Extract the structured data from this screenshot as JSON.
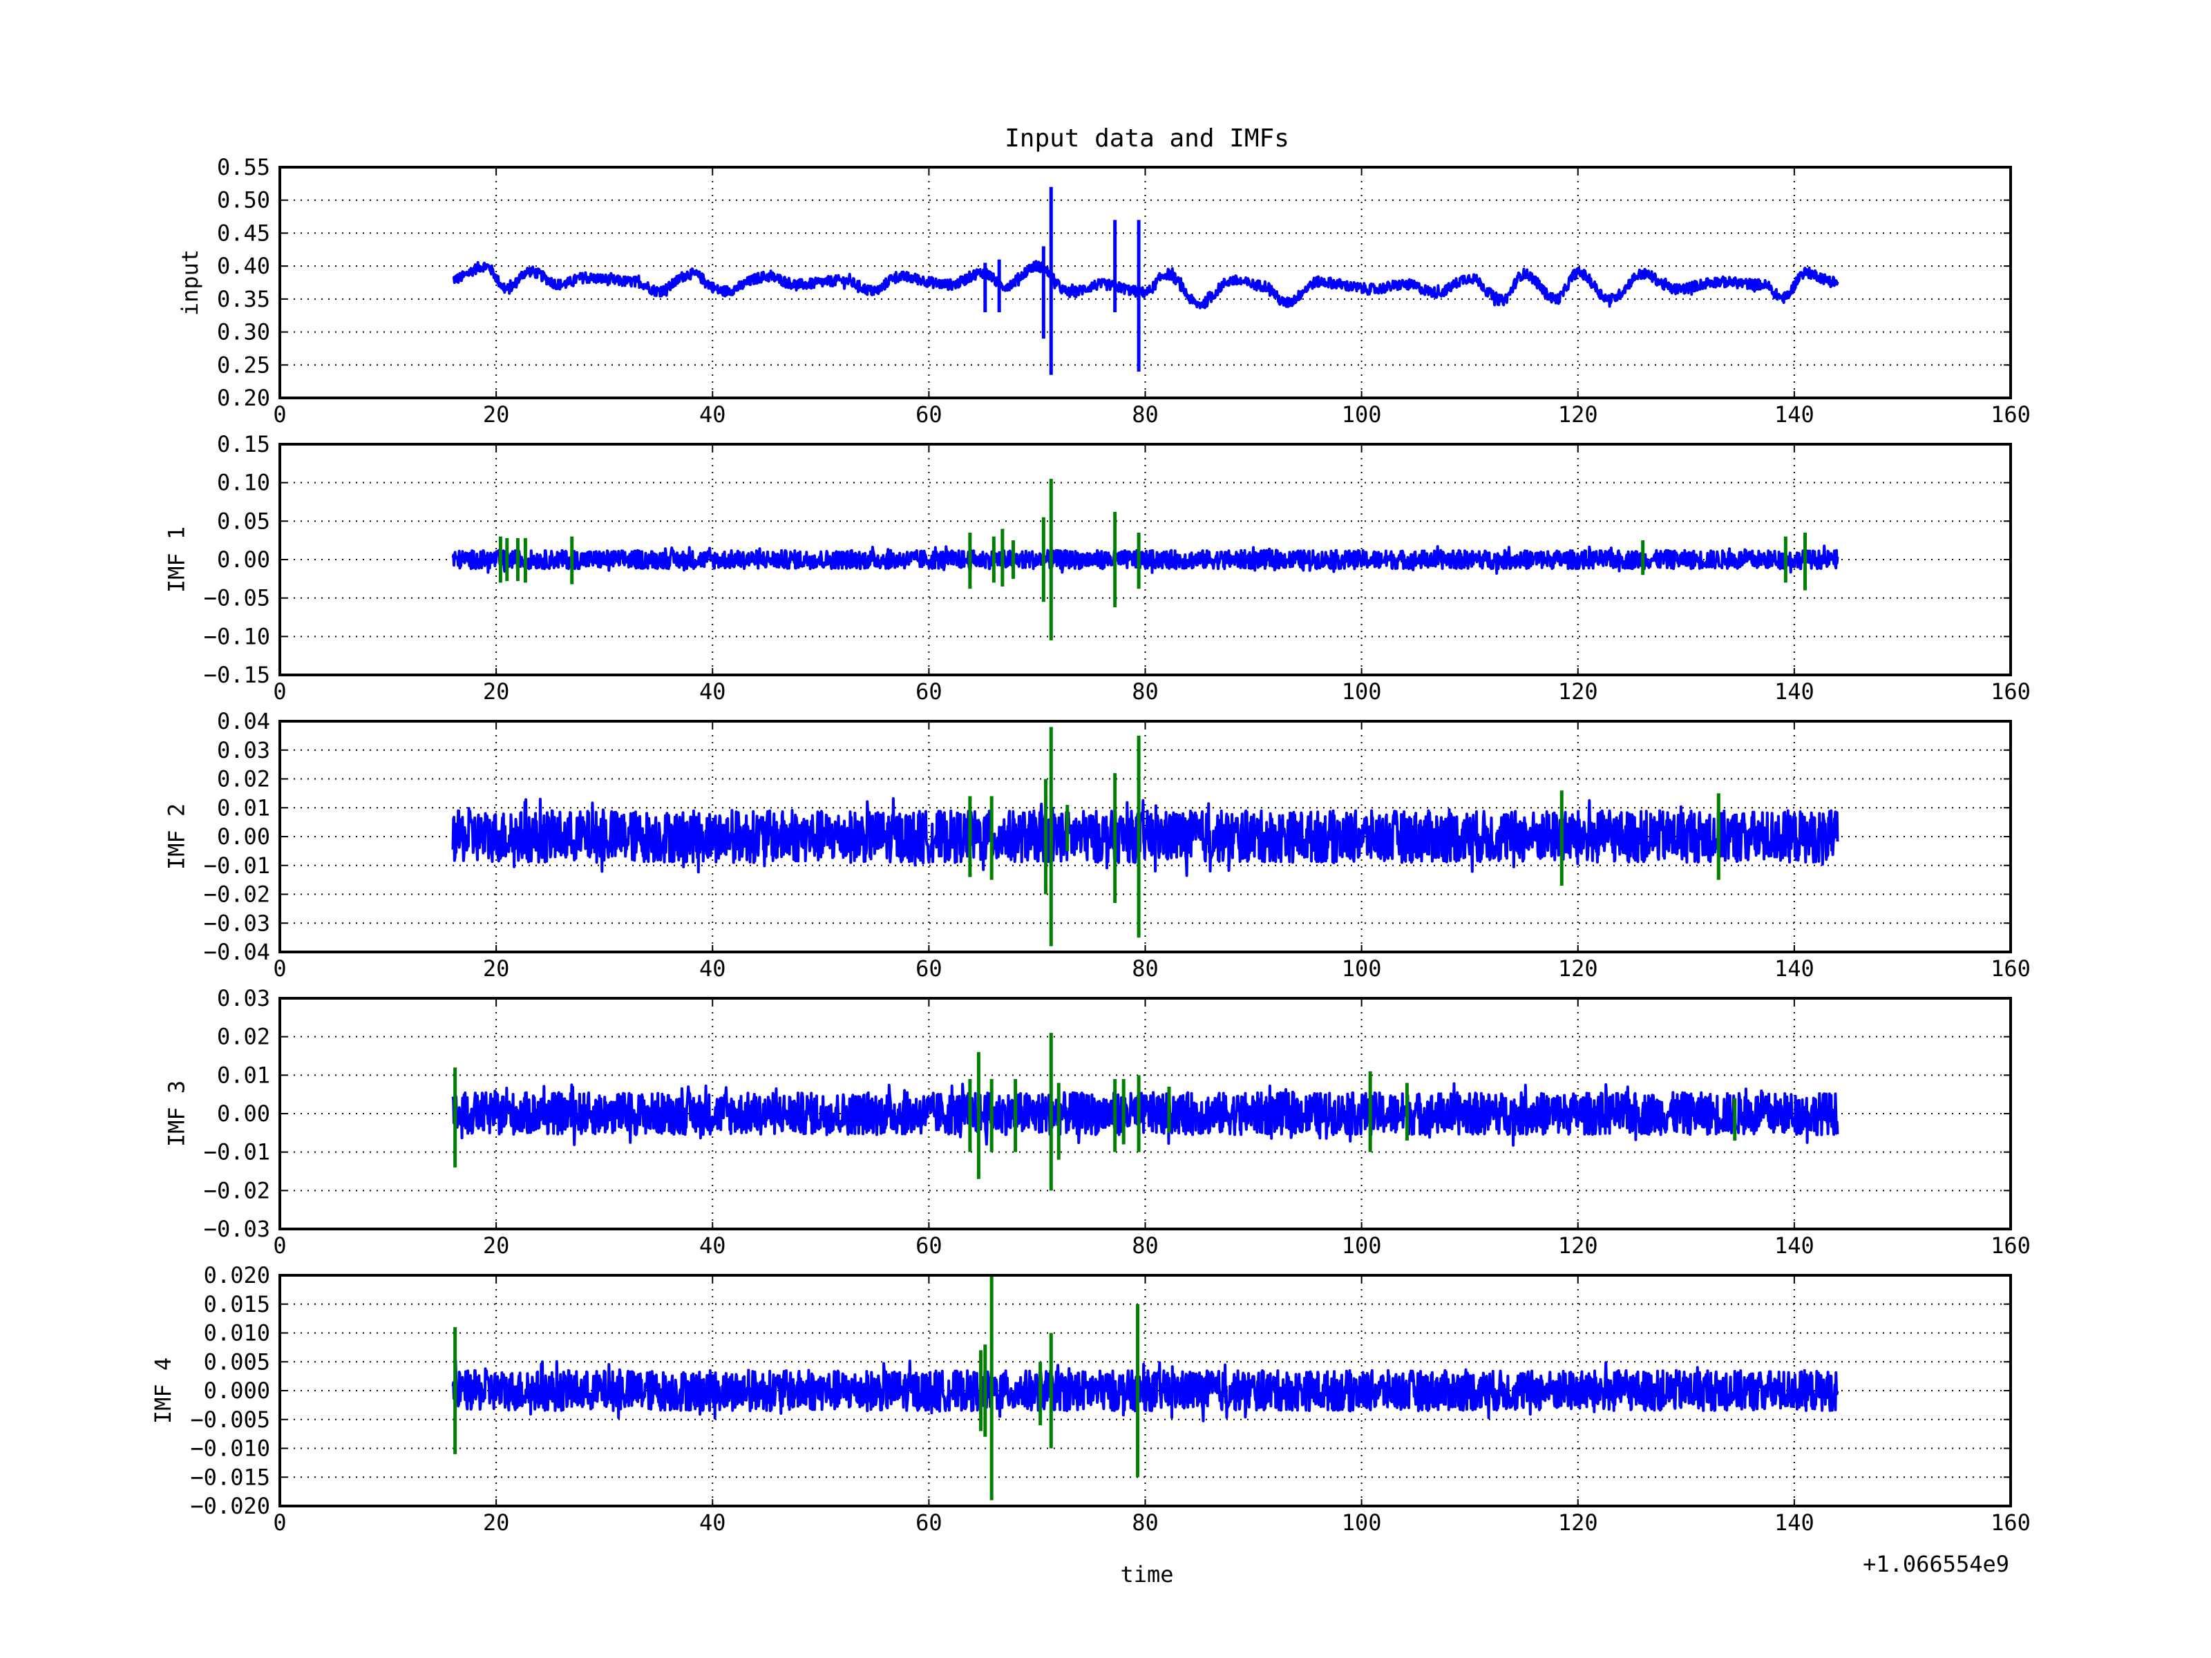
{
  "chart_data": {
    "type": "line",
    "title": "Input data and IMFs",
    "xlabel": "time",
    "x_offset_label": "+1.066554e9",
    "xlim": [
      0,
      160
    ],
    "xticks": [
      0,
      20,
      40,
      60,
      80,
      100,
      120,
      140,
      160
    ],
    "x_range_of_data": [
      16,
      144
    ],
    "grid": true,
    "colors": {
      "signal": "#0000ff",
      "highlight": "#007f00",
      "axis": "#000000"
    },
    "panels": [
      {
        "ylabel": "input",
        "ylim": [
          0.2,
          0.55
        ],
        "yticks": [
          "0.20",
          "0.25",
          "0.30",
          "0.35",
          "0.40",
          "0.45",
          "0.50",
          "0.55"
        ],
        "base_value": 0.375,
        "noise_amplitude": 0.008,
        "slow_waves": [
          {
            "x": 16,
            "y": 0.38
          },
          {
            "x": 19,
            "y": 0.4
          },
          {
            "x": 21,
            "y": 0.365
          },
          {
            "x": 23,
            "y": 0.392
          },
          {
            "x": 26,
            "y": 0.372
          },
          {
            "x": 28,
            "y": 0.382
          },
          {
            "x": 33,
            "y": 0.376
          },
          {
            "x": 35,
            "y": 0.362
          },
          {
            "x": 38,
            "y": 0.388
          },
          {
            "x": 41,
            "y": 0.362
          },
          {
            "x": 45,
            "y": 0.384
          },
          {
            "x": 48,
            "y": 0.372
          },
          {
            "x": 52,
            "y": 0.378
          },
          {
            "x": 55,
            "y": 0.362
          },
          {
            "x": 57,
            "y": 0.384
          },
          {
            "x": 62,
            "y": 0.372
          },
          {
            "x": 65,
            "y": 0.39
          },
          {
            "x": 67,
            "y": 0.37
          },
          {
            "x": 70,
            "y": 0.4
          },
          {
            "x": 73,
            "y": 0.36
          },
          {
            "x": 76,
            "y": 0.372
          },
          {
            "x": 80,
            "y": 0.36
          },
          {
            "x": 82,
            "y": 0.388
          },
          {
            "x": 85,
            "y": 0.342
          },
          {
            "x": 88,
            "y": 0.378
          },
          {
            "x": 91,
            "y": 0.37
          },
          {
            "x": 93,
            "y": 0.344
          },
          {
            "x": 96,
            "y": 0.376
          },
          {
            "x": 101,
            "y": 0.365
          },
          {
            "x": 104,
            "y": 0.372
          },
          {
            "x": 107,
            "y": 0.36
          },
          {
            "x": 110,
            "y": 0.382
          },
          {
            "x": 113,
            "y": 0.348
          },
          {
            "x": 115,
            "y": 0.388
          },
          {
            "x": 118,
            "y": 0.35
          },
          {
            "x": 120,
            "y": 0.39
          },
          {
            "x": 123,
            "y": 0.35
          },
          {
            "x": 126,
            "y": 0.388
          },
          {
            "x": 129,
            "y": 0.365
          },
          {
            "x": 133,
            "y": 0.376
          },
          {
            "x": 137,
            "y": 0.372
          },
          {
            "x": 139,
            "y": 0.352
          },
          {
            "x": 141,
            "y": 0.39
          },
          {
            "x": 144,
            "y": 0.375
          }
        ],
        "spikes": [
          {
            "x": 65.2,
            "min": 0.33,
            "max": 0.405
          },
          {
            "x": 66.5,
            "min": 0.33,
            "max": 0.41
          },
          {
            "x": 70.6,
            "min": 0.29,
            "max": 0.43
          },
          {
            "x": 71.3,
            "min": 0.235,
            "max": 0.52
          },
          {
            "x": 77.2,
            "min": 0.33,
            "max": 0.47
          },
          {
            "x": 79.4,
            "min": 0.24,
            "max": 0.47
          }
        ],
        "highlight_spikes": []
      },
      {
        "ylabel": "IMF 1",
        "ylim": [
          -0.15,
          0.15
        ],
        "yticks": [
          "−0.15",
          "−0.10",
          "−0.05",
          "0.00",
          "0.05",
          "0.10",
          "0.15"
        ],
        "base_value": 0,
        "noise_amplitude": 0.012,
        "spikes": [],
        "highlight_spikes": [
          {
            "x": 20.4,
            "min": -0.03,
            "max": 0.03
          },
          {
            "x": 21.0,
            "min": -0.028,
            "max": 0.028
          },
          {
            "x": 22.0,
            "min": -0.028,
            "max": 0.028
          },
          {
            "x": 22.7,
            "min": -0.03,
            "max": 0.028
          },
          {
            "x": 27.0,
            "min": -0.032,
            "max": 0.03
          },
          {
            "x": 63.8,
            "min": -0.038,
            "max": 0.035
          },
          {
            "x": 66.0,
            "min": -0.03,
            "max": 0.03
          },
          {
            "x": 66.8,
            "min": -0.035,
            "max": 0.04
          },
          {
            "x": 67.8,
            "min": -0.025,
            "max": 0.025
          },
          {
            "x": 70.6,
            "min": -0.055,
            "max": 0.055
          },
          {
            "x": 71.3,
            "min": -0.105,
            "max": 0.105
          },
          {
            "x": 77.2,
            "min": -0.062,
            "max": 0.062
          },
          {
            "x": 79.4,
            "min": -0.038,
            "max": 0.035
          },
          {
            "x": 126.0,
            "min": -0.02,
            "max": 0.025
          },
          {
            "x": 139.2,
            "min": -0.03,
            "max": 0.03
          },
          {
            "x": 141.0,
            "min": -0.04,
            "max": 0.035
          }
        ]
      },
      {
        "ylabel": "IMF 2",
        "ylim": [
          -0.04,
          0.04
        ],
        "yticks": [
          "−0.04",
          "−0.03",
          "−0.02",
          "−0.01",
          "0.00",
          "0.01",
          "0.02",
          "0.03",
          "0.04"
        ],
        "base_value": 0,
        "noise_amplitude": 0.009,
        "spikes": [],
        "highlight_spikes": [
          {
            "x": 63.8,
            "min": -0.014,
            "max": 0.014
          },
          {
            "x": 65.8,
            "min": -0.015,
            "max": 0.014
          },
          {
            "x": 70.8,
            "min": -0.02,
            "max": 0.02
          },
          {
            "x": 71.3,
            "min": -0.038,
            "max": 0.038
          },
          {
            "x": 72.8,
            "min": -0.005,
            "max": 0.011
          },
          {
            "x": 77.2,
            "min": -0.023,
            "max": 0.022
          },
          {
            "x": 79.4,
            "min": -0.035,
            "max": 0.035
          },
          {
            "x": 118.5,
            "min": -0.017,
            "max": 0.016
          },
          {
            "x": 133.0,
            "min": -0.015,
            "max": 0.015
          }
        ]
      },
      {
        "ylabel": "IMF 3",
        "ylim": [
          -0.03,
          0.03
        ],
        "yticks": [
          "−0.03",
          "−0.02",
          "−0.01",
          "0.00",
          "0.01",
          "0.02",
          "0.03"
        ],
        "base_value": 0,
        "noise_amplitude": 0.0055,
        "spikes": [],
        "highlight_spikes": [
          {
            "x": 16.2,
            "min": -0.014,
            "max": 0.012
          },
          {
            "x": 63.8,
            "min": -0.01,
            "max": 0.009
          },
          {
            "x": 64.6,
            "min": -0.017,
            "max": 0.016
          },
          {
            "x": 65.8,
            "min": -0.01,
            "max": 0.009
          },
          {
            "x": 68.0,
            "min": -0.01,
            "max": 0.009
          },
          {
            "x": 71.3,
            "min": -0.02,
            "max": 0.021
          },
          {
            "x": 72.0,
            "min": -0.012,
            "max": 0.008
          },
          {
            "x": 77.2,
            "min": -0.01,
            "max": 0.009
          },
          {
            "x": 78.0,
            "min": -0.008,
            "max": 0.009
          },
          {
            "x": 79.4,
            "min": -0.01,
            "max": 0.01
          },
          {
            "x": 82.2,
            "min": -0.005,
            "max": 0.007
          },
          {
            "x": 100.8,
            "min": -0.01,
            "max": 0.011
          },
          {
            "x": 104.2,
            "min": -0.007,
            "max": 0.008
          },
          {
            "x": 134.5,
            "min": -0.007,
            "max": 0.004
          }
        ]
      },
      {
        "ylabel": "IMF 4",
        "ylim": [
          -0.02,
          0.02
        ],
        "yticks": [
          "−0.020",
          "−0.015",
          "−0.010",
          "−0.005",
          "0.000",
          "0.005",
          "0.010",
          "0.015",
          "0.020"
        ],
        "base_value": 0,
        "noise_amplitude": 0.0035,
        "spikes": [],
        "highlight_spikes": [
          {
            "x": 16.2,
            "min": -0.011,
            "max": 0.011
          },
          {
            "x": 64.8,
            "min": -0.007,
            "max": 0.007
          },
          {
            "x": 65.2,
            "min": -0.008,
            "max": 0.008
          },
          {
            "x": 65.8,
            "min": -0.019,
            "max": 0.02
          },
          {
            "x": 70.3,
            "min": -0.006,
            "max": 0.005
          },
          {
            "x": 71.3,
            "min": -0.01,
            "max": 0.01
          },
          {
            "x": 79.3,
            "min": -0.015,
            "max": 0.015
          }
        ]
      }
    ]
  }
}
